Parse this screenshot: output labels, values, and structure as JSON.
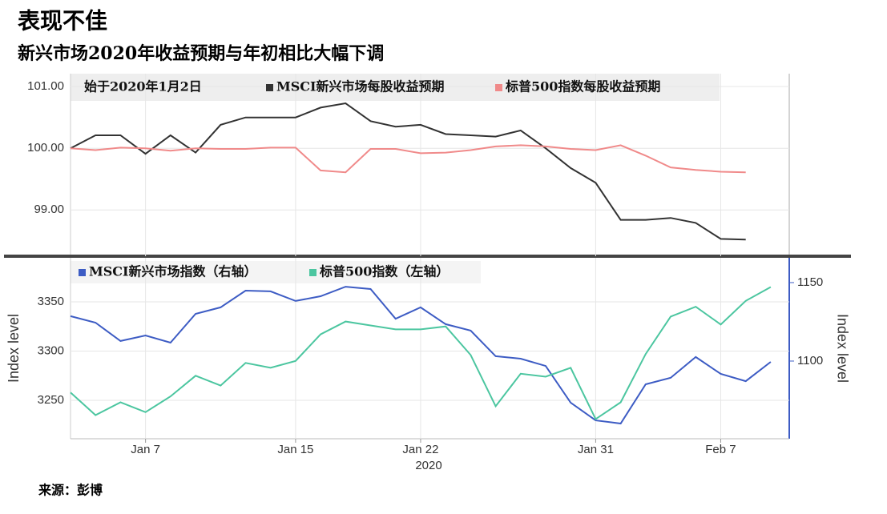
{
  "title": "表现不佳",
  "subtitle": "新兴市场2020年收益预期与年初相比大幅下调",
  "source": "来源：彭博",
  "chart_data": [
    {
      "type": "line",
      "note": "始于2020年1月2日",
      "ylim": [
        98.25,
        101.21
      ],
      "yticks": [
        {
          "value": 99,
          "label": "99.00"
        },
        {
          "value": 100,
          "label": "100.00"
        },
        {
          "value": 101,
          "label": "101.00"
        }
      ],
      "grid": true,
      "series": [
        {
          "name": "MSCI新兴市场每股收益预期",
          "color": "#333333",
          "values": [
            100.0,
            100.21,
            100.21,
            99.91,
            100.21,
            99.93,
            100.38,
            100.5,
            100.5,
            100.5,
            100.66,
            100.73,
            100.44,
            100.35,
            100.38,
            100.23,
            100.21,
            100.19,
            100.29,
            100.0,
            99.68,
            99.44,
            98.84,
            98.84,
            98.87,
            98.79,
            98.53,
            98.52
          ]
        },
        {
          "name": "标普500指数每股收益预期",
          "color": "#f08a8a",
          "values": [
            100.0,
            99.97,
            100.01,
            100.0,
            99.96,
            100.0,
            99.99,
            99.99,
            100.01,
            100.01,
            99.64,
            99.61,
            99.99,
            99.99,
            99.92,
            99.93,
            99.97,
            100.03,
            100.05,
            100.03,
            99.99,
            99.97,
            100.05,
            99.88,
            99.69,
            99.65,
            99.62,
            99.61
          ]
        }
      ]
    },
    {
      "type": "line",
      "categories": [
        null,
        null,
        null,
        "Jan 7",
        null,
        null,
        null,
        null,
        null,
        "Jan 15",
        null,
        null,
        null,
        null,
        "Jan 22",
        null,
        null,
        null,
        null,
        null,
        null,
        "Jan 31",
        null,
        null,
        null,
        null,
        "Feb 7",
        null,
        null
      ],
      "xlabel": "2020",
      "ylabel": "Index level",
      "y2label": "Index level",
      "ylim": [
        3211,
        3394.7
      ],
      "yticks": [
        3250,
        3300,
        3350
      ],
      "y2lim": [
        1050.5,
        1165.8
      ],
      "y2ticks": [
        1100,
        1150
      ],
      "grid": true,
      "series": [
        {
          "name": "MSCI新兴市场指数（右轴）",
          "color": "#3d5cc4",
          "axis": "y2",
          "values": [
            1128.6,
            1124.5,
            1112.8,
            1116.3,
            1111.7,
            1130.1,
            1134.2,
            1144.9,
            1144.4,
            1138.3,
            1141.3,
            1147.4,
            1145.9,
            1127.0,
            1134.2,
            1123.5,
            1119.4,
            1103.1,
            1101.5,
            1096.9,
            1073.5,
            1062.2,
            1060.2,
            1085.2,
            1089.3,
            1102.6,
            1091.8,
            1087.2,
            1099.5
          ]
        },
        {
          "name": "标普500指数（左轴）",
          "color": "#4cc6a0",
          "values": [
            3258,
            3235,
            3248,
            3238,
            3254,
            3275,
            3265,
            3288,
            3283,
            3290,
            3317,
            3330,
            3326,
            3322,
            3322,
            3325,
            3296,
            3244,
            3277,
            3274,
            3283,
            3231,
            3248,
            3297,
            3335,
            3345,
            3327,
            3351,
            3365
          ]
        }
      ]
    }
  ]
}
